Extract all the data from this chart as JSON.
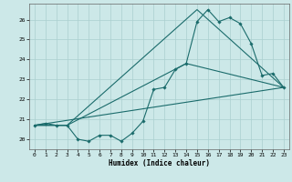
{
  "xlabel": "Humidex (Indice chaleur)",
  "bg_color": "#cce8e8",
  "grid_color": "#aacfcf",
  "line_color": "#1a6b6b",
  "xlim": [
    -0.5,
    23.5
  ],
  "ylim": [
    19.5,
    26.8
  ],
  "yticks": [
    20,
    21,
    22,
    23,
    24,
    25,
    26
  ],
  "xticks": [
    0,
    1,
    2,
    3,
    4,
    5,
    6,
    7,
    8,
    9,
    10,
    11,
    12,
    13,
    14,
    15,
    16,
    17,
    18,
    19,
    20,
    21,
    22,
    23
  ],
  "line1_x": [
    0,
    1,
    2,
    3,
    4,
    5,
    6,
    7,
    8,
    9,
    10,
    11,
    12,
    13,
    14,
    15,
    16,
    17,
    18,
    19,
    20,
    21,
    22,
    23
  ],
  "line1_y": [
    20.7,
    20.8,
    20.7,
    20.7,
    20.0,
    19.9,
    20.2,
    20.2,
    19.9,
    20.3,
    20.9,
    22.5,
    22.6,
    23.5,
    23.8,
    25.9,
    26.5,
    25.9,
    26.1,
    25.8,
    24.8,
    23.2,
    23.3,
    22.6
  ],
  "line2_x": [
    0,
    3,
    15,
    23
  ],
  "line2_y": [
    20.7,
    20.7,
    26.5,
    22.6
  ],
  "line3_x": [
    0,
    3,
    14,
    23
  ],
  "line3_y": [
    20.7,
    20.7,
    23.8,
    22.6
  ],
  "line4_x": [
    0,
    23
  ],
  "line4_y": [
    20.7,
    22.6
  ]
}
